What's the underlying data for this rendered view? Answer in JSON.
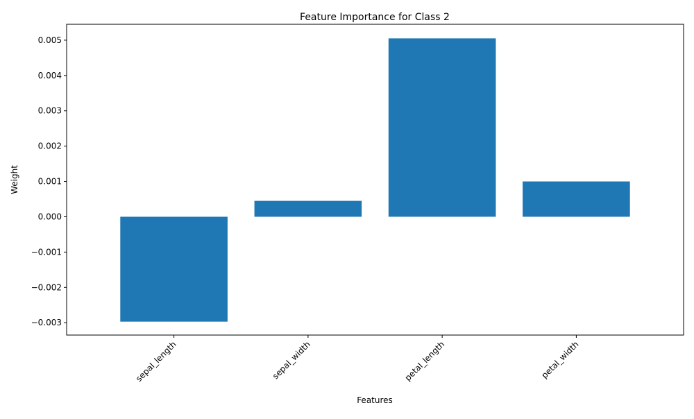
{
  "chart_data": {
    "type": "bar",
    "title": "Feature Importance for Class 2",
    "xlabel": "Features",
    "ylabel": "Weight",
    "categories": [
      "sepal_length",
      "sepal_width",
      "petal_length",
      "petal_width"
    ],
    "values": [
      -0.00297,
      0.00045,
      0.00505,
      0.001
    ],
    "ylim": [
      -0.00335,
      0.00545
    ],
    "yticks": [
      -0.003,
      -0.002,
      -0.001,
      0.0,
      0.001,
      0.002,
      0.003,
      0.004,
      0.005
    ],
    "ytick_labels": [
      "−0.003",
      "−0.002",
      "−0.001",
      "0.000",
      "0.001",
      "0.002",
      "0.003",
      "0.004",
      "0.005"
    ],
    "bar_color": "#1f77b4",
    "grid": false,
    "x_tick_rotation_deg": 45
  }
}
